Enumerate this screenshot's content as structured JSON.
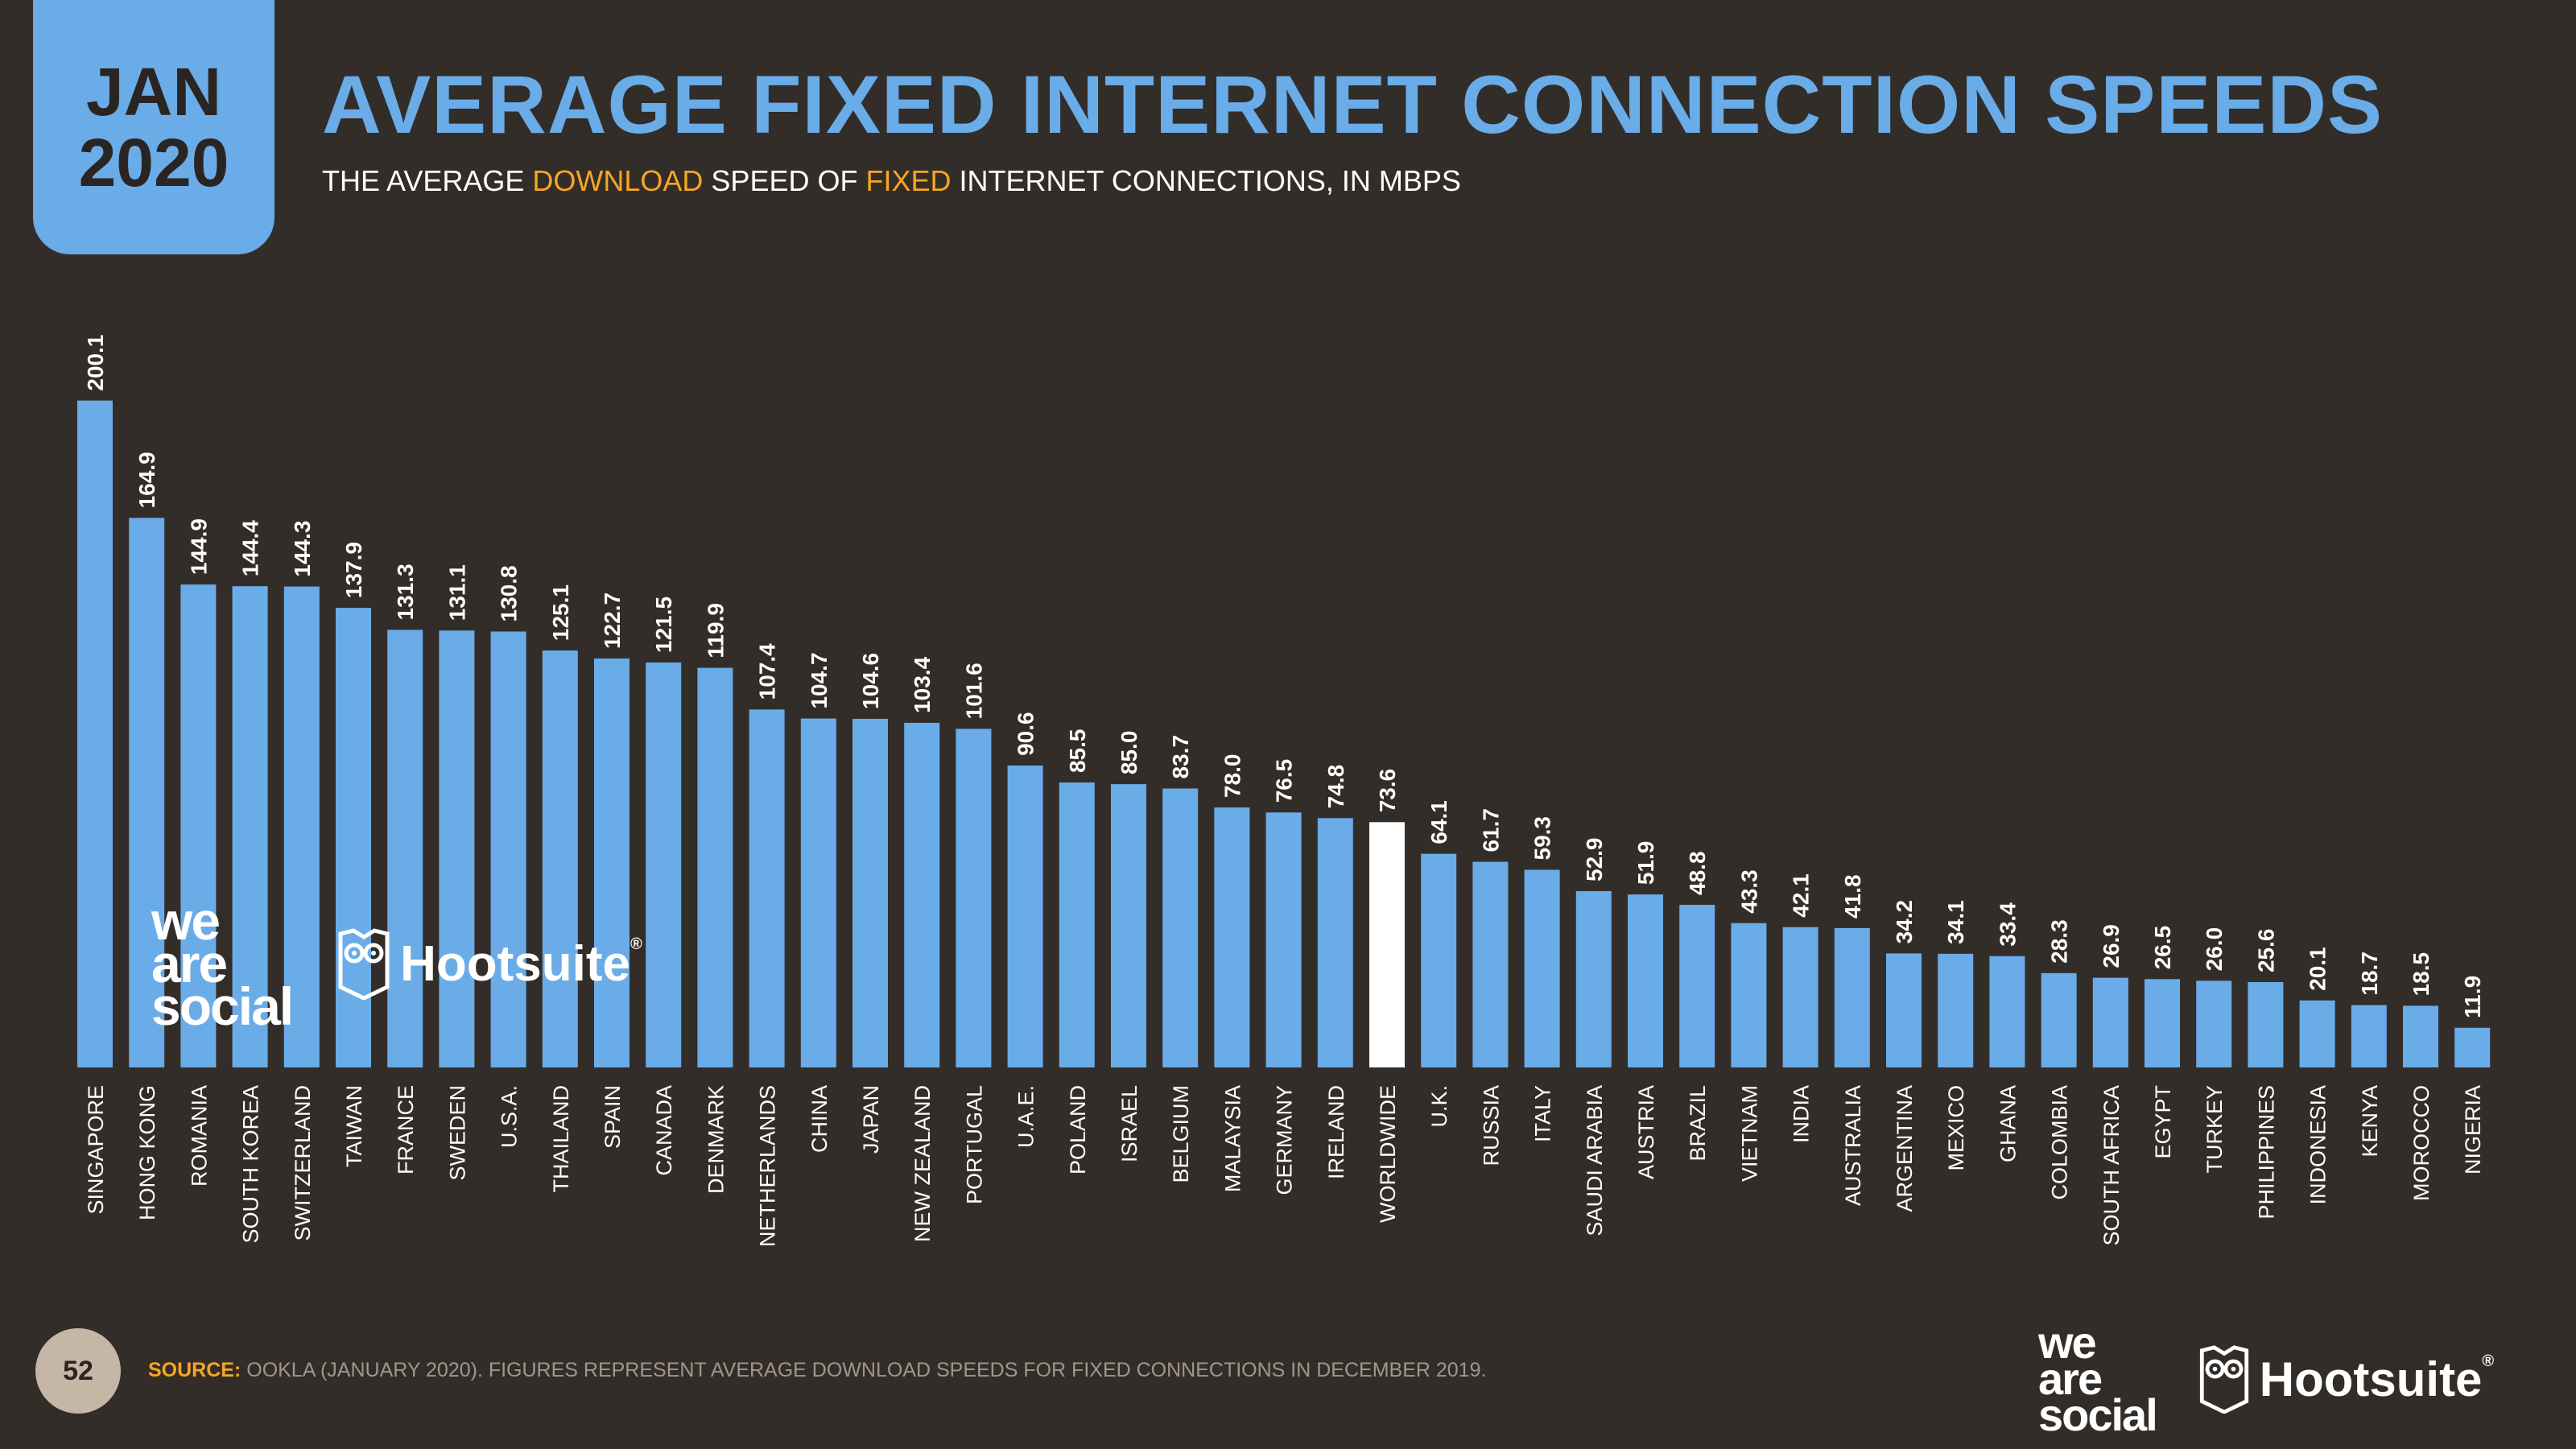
{
  "badge": {
    "month": "JAN",
    "year": "2020"
  },
  "title": "AVERAGE FIXED INTERNET CONNECTION SPEEDS",
  "subtitle": {
    "part1": "THE AVERAGE ",
    "hl1": "DOWNLOAD",
    "part2": " SPEED OF ",
    "hl2": "FIXED",
    "part3": " INTERNET CONNECTIONS, IN MBPS"
  },
  "chart_data": {
    "type": "bar",
    "title": "AVERAGE FIXED INTERNET CONNECTION SPEEDS",
    "ylabel": "Mbps",
    "xlabel": "",
    "ylim": [
      0,
      205
    ],
    "grid": false,
    "categories": [
      "SINGAPORE",
      "HONG KONG",
      "ROMANIA",
      "SOUTH KOREA",
      "SWITZERLAND",
      "TAIWAN",
      "FRANCE",
      "SWEDEN",
      "U.S.A.",
      "THAILAND",
      "SPAIN",
      "CANADA",
      "DENMARK",
      "NETHERLANDS",
      "CHINA",
      "JAPAN",
      "NEW ZEALAND",
      "PORTUGAL",
      "U.A.E.",
      "POLAND",
      "ISRAEL",
      "BELGIUM",
      "MALAYSIA",
      "GERMANY",
      "IRELAND",
      "WORLDWIDE",
      "U.K.",
      "RUSSIA",
      "ITALY",
      "SAUDI ARABIA",
      "AUSTRIA",
      "BRAZIL",
      "VIETNAM",
      "INDIA",
      "AUSTRALIA",
      "ARGENTINA",
      "MEXICO",
      "GHANA",
      "COLOMBIA",
      "SOUTH AFRICA",
      "EGYPT",
      "TURKEY",
      "PHILIPPINES",
      "INDONESIA",
      "KENYA",
      "MOROCCO",
      "NIGERIA"
    ],
    "values": [
      200.1,
      164.9,
      144.9,
      144.4,
      144.3,
      137.9,
      131.3,
      131.1,
      130.8,
      125.1,
      122.7,
      121.5,
      119.9,
      107.4,
      104.7,
      104.6,
      103.4,
      101.6,
      90.6,
      85.5,
      85.0,
      83.7,
      78.0,
      76.5,
      74.8,
      73.6,
      64.1,
      61.7,
      59.3,
      52.9,
      51.9,
      48.8,
      43.3,
      42.1,
      41.8,
      34.2,
      34.1,
      33.4,
      28.3,
      26.9,
      26.5,
      26.0,
      25.6,
      20.1,
      18.7,
      18.5,
      11.9
    ],
    "labels": [
      "200.1",
      "164.9",
      "144.9",
      "144.4",
      "144.3",
      "137.9",
      "131.3",
      "131.1",
      "130.8",
      "125.1",
      "122.7",
      "121.5",
      "119.9",
      "107.4",
      "104.7",
      "104.6",
      "103.4",
      "101.6",
      "90.6",
      "85.5",
      "85.0",
      "83.7",
      "78.0",
      "76.5",
      "74.8",
      "73.6",
      "64.1",
      "61.7",
      "59.3",
      "52.9",
      "51.9",
      "48.8",
      "43.3",
      "42.1",
      "41.8",
      "34.2",
      "34.1",
      "33.4",
      "28.3",
      "26.9",
      "26.5",
      "26.0",
      "25.6",
      "20.1",
      "18.7",
      "18.5",
      "11.9"
    ],
    "highlight": "WORLDWIDE",
    "colors": {
      "bar": "#6aace8",
      "highlight": "#ffffff"
    }
  },
  "brands": {
    "was_lines": [
      "we",
      "are",
      "social"
    ],
    "hootsuite": "Hootsuite",
    "registered": "®"
  },
  "footer": {
    "page_number": "52",
    "source_label": "SOURCE:",
    "source_text": " OOKLA (JANUARY 2020). FIGURES REPRESENT AVERAGE DOWNLOAD SPEEDS FOR FIXED CONNECTIONS IN DECEMBER 2019."
  },
  "colors": {
    "background": "#332d29",
    "accent": "#6aace8",
    "highlight_text": "#f6a623"
  }
}
